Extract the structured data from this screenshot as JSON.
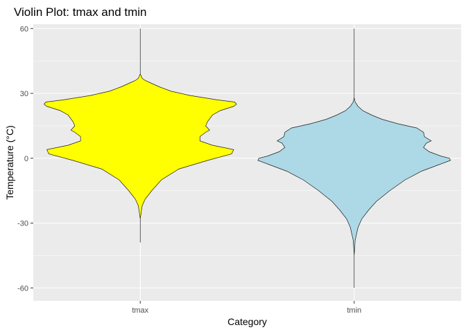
{
  "chart_data": {
    "type": "violin",
    "title": "Violin Plot: tmax and tmin",
    "xlabel": "Category",
    "ylabel": "Temperature (°C)",
    "categories": [
      "tmax",
      "tmin"
    ],
    "ylim": [
      -66,
      62
    ],
    "yticks": [
      -60,
      -30,
      0,
      30,
      60
    ],
    "grid": true,
    "panel_background": "#ebebeb",
    "grid_color": "#ffffff",
    "series": [
      {
        "category": "tmax",
        "fill": "#ffff00",
        "range": [
          -39,
          60
        ],
        "density_profile": [
          [
            -39,
            0.0
          ],
          [
            -28,
            0.0
          ],
          [
            -22,
            0.02
          ],
          [
            -19,
            0.05
          ],
          [
            -15,
            0.12
          ],
          [
            -10,
            0.22
          ],
          [
            -5,
            0.4
          ],
          [
            -1,
            0.7
          ],
          [
            2,
            0.95
          ],
          [
            4,
            0.97
          ],
          [
            6,
            0.75
          ],
          [
            8,
            0.62
          ],
          [
            10,
            0.62
          ],
          [
            12,
            0.68
          ],
          [
            13,
            0.72
          ],
          [
            15,
            0.68
          ],
          [
            17,
            0.7
          ],
          [
            20,
            0.75
          ],
          [
            22,
            0.83
          ],
          [
            24,
            0.97
          ],
          [
            25,
            1.0
          ],
          [
            26,
            0.98
          ],
          [
            27,
            0.8
          ],
          [
            29,
            0.52
          ],
          [
            31,
            0.32
          ],
          [
            33,
            0.2
          ],
          [
            35,
            0.1
          ],
          [
            36,
            0.05
          ],
          [
            37,
            0.02
          ],
          [
            39,
            0.0
          ],
          [
            60,
            0.0
          ]
        ]
      },
      {
        "category": "tmin",
        "fill": "#add8e6",
        "range": [
          -60,
          60
        ],
        "density_profile": [
          [
            -60,
            0.0
          ],
          [
            -45,
            0.0
          ],
          [
            -38,
            0.01
          ],
          [
            -32,
            0.04
          ],
          [
            -28,
            0.08
          ],
          [
            -24,
            0.15
          ],
          [
            -20,
            0.23
          ],
          [
            -15,
            0.37
          ],
          [
            -10,
            0.53
          ],
          [
            -6,
            0.7
          ],
          [
            -3,
            0.88
          ],
          [
            -1,
            1.0
          ],
          [
            0,
            0.99
          ],
          [
            1,
            0.9
          ],
          [
            3,
            0.78
          ],
          [
            5,
            0.72
          ],
          [
            7,
            0.75
          ],
          [
            8,
            0.8
          ],
          [
            10,
            0.73
          ],
          [
            12,
            0.72
          ],
          [
            14,
            0.65
          ],
          [
            16,
            0.45
          ],
          [
            18,
            0.29
          ],
          [
            20,
            0.18
          ],
          [
            22,
            0.09
          ],
          [
            24,
            0.04
          ],
          [
            26,
            0.01
          ],
          [
            28,
            0.0
          ],
          [
            60,
            0.0
          ]
        ]
      }
    ]
  }
}
